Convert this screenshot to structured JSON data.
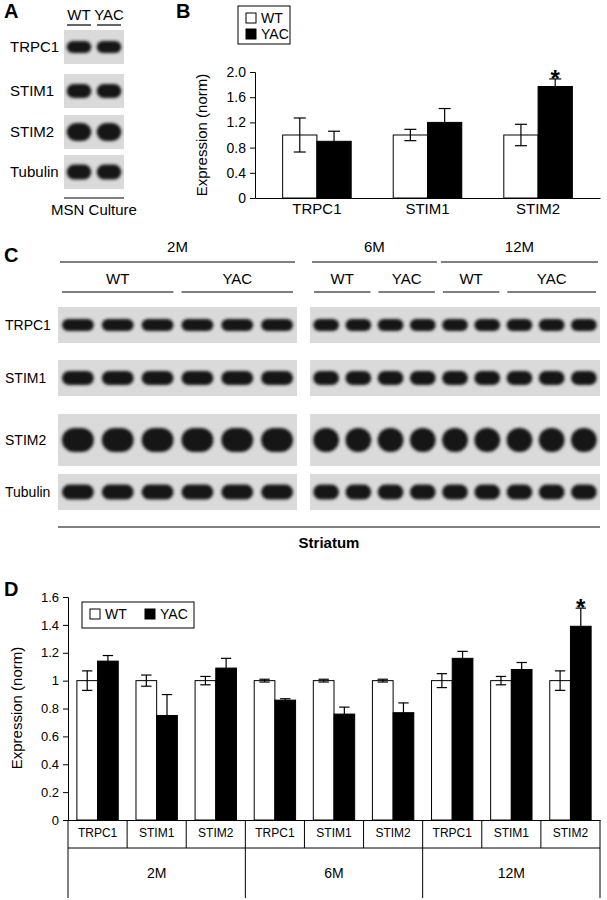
{
  "blots": [
    {
      "panel_label": "A",
      "columns": [
        {
          "label": "WT",
          "lanes": 1
        },
        {
          "label": "YAC",
          "lanes": 1
        }
      ],
      "rows": [
        "TRPC1",
        "STIM1",
        "STIM2",
        "Tubulin"
      ],
      "caption": "MSN Culture"
    },
    {
      "panel_label": "C",
      "groups": [
        {
          "label": "2M",
          "columns": [
            {
              "label": "WT",
              "lanes": 3
            },
            {
              "label": "YAC",
              "lanes": 3
            }
          ]
        },
        {
          "label": "6M",
          "columns": [
            {
              "label": "WT",
              "lanes": 2
            },
            {
              "label": "YAC",
              "lanes": 2
            }
          ]
        },
        {
          "label": "12M",
          "columns": [
            {
              "label": "WT",
              "lanes": 2
            },
            {
              "label": "YAC",
              "lanes": 3
            }
          ]
        }
      ],
      "rows": [
        "TRPC1",
        "STIM1",
        "STIM2",
        "Tubulin"
      ],
      "caption": "Striatum"
    }
  ],
  "chart_data": [
    {
      "type": "bar",
      "panel_label": "B",
      "y_label": "Expression (norm)",
      "categories": [
        "TRPC1",
        "STIM1",
        "STIM2"
      ],
      "series": [
        {
          "name": "WT",
          "color": "#ffffff",
          "values": [
            1.0,
            1.0,
            1.0
          ],
          "errors": [
            0.27,
            0.09,
            0.17
          ]
        },
        {
          "name": "YAC",
          "color": "#000000",
          "values": [
            0.9,
            1.2,
            1.77
          ],
          "errors": [
            0.16,
            0.22,
            0.12
          ],
          "annotations": [
            null,
            null,
            "*"
          ]
        }
      ],
      "ylim": [
        0,
        2
      ],
      "yticks": [
        0,
        0.4,
        0.8,
        1.2,
        1.6,
        {
          "value": 2,
          "label": "2.0"
        }
      ],
      "grid": false,
      "legend": "upper left"
    },
    {
      "type": "bar",
      "panel_label": "D",
      "y_label": "Expression (norm)",
      "categories": [
        "TRPC1",
        "STIM1",
        "STIM2",
        "TRPC1",
        "STIM1",
        "STIM2",
        "TRPC1",
        "STIM1",
        "STIM2"
      ],
      "x_groups": [
        "2M",
        "2M",
        "2M",
        "6M",
        "6M",
        "6M",
        "12M",
        "12M",
        "12M"
      ],
      "series": [
        {
          "name": "WT",
          "color": "#ffffff",
          "values": [
            1.0,
            1.0,
            1.0,
            1.0,
            1.0,
            1.0,
            1.0,
            1.0,
            1.0
          ],
          "errors": [
            0.07,
            0.04,
            0.03,
            0.01,
            0.01,
            0.01,
            0.05,
            0.03,
            0.07
          ]
        },
        {
          "name": "YAC",
          "color": "#000000",
          "values": [
            1.14,
            0.75,
            1.09,
            0.86,
            0.76,
            0.77,
            1.16,
            1.08,
            1.39
          ],
          "errors": [
            0.04,
            0.15,
            0.07,
            0.01,
            0.05,
            0.07,
            0.05,
            0.05,
            0.13
          ],
          "annotations": [
            null,
            null,
            null,
            null,
            null,
            null,
            null,
            null,
            "*"
          ]
        }
      ],
      "ylim": [
        0,
        1.6
      ],
      "yticks": [
        0,
        0.2,
        0.4,
        0.6,
        0.8,
        1,
        1.2,
        1.4,
        1.6
      ],
      "grid": false,
      "legend": "upper left"
    }
  ]
}
